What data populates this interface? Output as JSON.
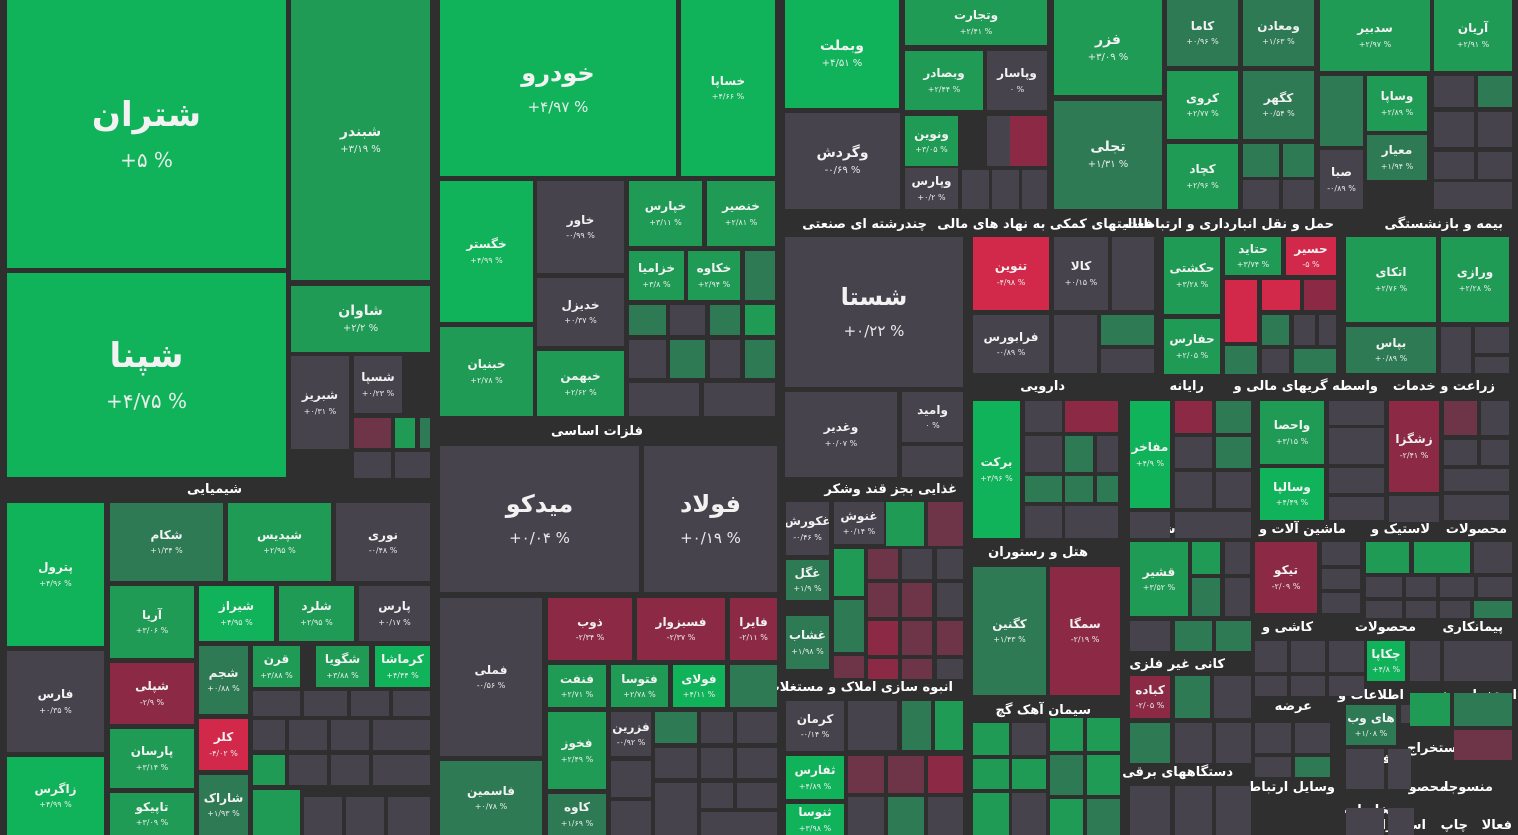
{
  "chart_data": {
    "type": "treemap",
    "title": "",
    "colors": {
      "up_bright": "#10b25a",
      "up": "#1f9b55",
      "up_dim": "#2d7a54",
      "flat": "#47434c",
      "down_dim": "#6e3447",
      "down": "#8c2a45",
      "down_bright": "#d2294a",
      "background": "#2f2f2f"
    },
    "sectors": [
      "شیمیایی",
      "فلزات اساسی",
      "چندرشته ای صنعتی",
      "فعالیتهای کمکی به نهاد های مالی",
      "حمل و نقل انبارداری و ارتباطات",
      "بیمه و بازنشستگی",
      "دارویی",
      "رایانه",
      "واسطه گریهای مالی و",
      "زراعت و خدمات",
      "غذایی بجز قند وشکر",
      "هتل و رستوران",
      "قند و شکر",
      "ماشین آلات و",
      "لاستیک و",
      "محصولات",
      "انبوه سازی املاک و مستغلات",
      "سیمان آهک گچ",
      "کانی غیر فلزی",
      "کاشی و",
      "محصولات",
      "پیمانکاری",
      "اطلاعات و",
      "خرده",
      "استخراج",
      "عرضه",
      "فنی و",
      "استخراج",
      "محصولا",
      "دستگاههای برقی",
      "وسایل ارتباطی",
      "مخابرات",
      "محصو",
      "منسوجا",
      "چاپ",
      "استخراج",
      "فعالا"
    ],
    "tickers": [
      {
        "name": "شتران",
        "change": "+۵ %"
      },
      {
        "name": "شپنا",
        "change": "+۴/۷۵ %"
      },
      {
        "name": "شبندر",
        "change": "+۳/۱۹ %"
      },
      {
        "name": "شاوان",
        "change": "+۲/۲ %"
      },
      {
        "name": "شبریز",
        "change": "+۰/۳۱ %"
      },
      {
        "name": "شسپا",
        "change": "+۰/۲۳ %"
      },
      {
        "name": "خودرو",
        "change": "+۴/۹۷ %"
      },
      {
        "name": "خساپا",
        "change": "+۴/۶۶ %"
      },
      {
        "name": "خگستر",
        "change": "+۴/۹۹ %"
      },
      {
        "name": "خبنیان",
        "change": "+۲/۷۸ %"
      },
      {
        "name": "خاور",
        "change": "-۰/۹۹ %"
      },
      {
        "name": "خدیزل",
        "change": "+۰/۳۷ %"
      },
      {
        "name": "خبهمن",
        "change": "+۲/۶۲ %"
      },
      {
        "name": "خپارس",
        "change": "+۳/۱۱ %"
      },
      {
        "name": "خنصیر",
        "change": "+۲/۸۱ %"
      },
      {
        "name": "خزامیا",
        "change": "+۳/۸ %"
      },
      {
        "name": "خکاوه",
        "change": "+۲/۹۴ %"
      },
      {
        "name": "وبملت",
        "change": "+۴/۵۱ %"
      },
      {
        "name": "وتجارت",
        "change": "+۲/۴۱ %"
      },
      {
        "name": "وبصادر",
        "change": "+۲/۴۴ %"
      },
      {
        "name": "وپاسار",
        "change": "۰ %"
      },
      {
        "name": "ونوین",
        "change": "+۳/۰۵ %"
      },
      {
        "name": "وپارس",
        "change": "+۰/۲ %"
      },
      {
        "name": "وگردش",
        "change": "-۰/۶۹ %"
      },
      {
        "name": "فزر",
        "change": "+۳/۰۹ %"
      },
      {
        "name": "تجلی",
        "change": "+۱/۳۱ %"
      },
      {
        "name": "کاما",
        "change": "+۰/۹۶ %"
      },
      {
        "name": "ومعادن",
        "change": "+۱/۶۳ %"
      },
      {
        "name": "کروی",
        "change": "+۲/۷۷ %"
      },
      {
        "name": "کگهر",
        "change": "+۰/۵۴ %"
      },
      {
        "name": "کچاد",
        "change": "+۲/۹۶ %"
      },
      {
        "name": "سدبیر",
        "change": "+۲/۹۷ %"
      },
      {
        "name": "آریان",
        "change": "+۲/۹۱ %"
      },
      {
        "name": "وساپا",
        "change": "+۲/۸۹ %"
      },
      {
        "name": "معیار",
        "change": "+۱/۹۴ %"
      },
      {
        "name": "صبا",
        "change": "-۰/۸۹ %"
      },
      {
        "name": "شستا",
        "change": "+۰/۲۲ %"
      },
      {
        "name": "وغدیر",
        "change": "+۰/۰۷ %"
      },
      {
        "name": "وامید",
        "change": "۰ %"
      },
      {
        "name": "تنوین",
        "change": "-۴/۹۸ %"
      },
      {
        "name": "کالا",
        "change": "+۰/۱۵ %"
      },
      {
        "name": "فرابورس",
        "change": "-۰/۸۹ %"
      },
      {
        "name": "حکشتی",
        "change": "+۳/۲۸ %"
      },
      {
        "name": "حتاید",
        "change": "+۳/۷۴ %"
      },
      {
        "name": "حسیر",
        "change": "-۵ %"
      },
      {
        "name": "حفارس",
        "change": "+۲/۰۵ %"
      },
      {
        "name": "اتکای",
        "change": "+۲/۷۶ %"
      },
      {
        "name": "ورازی",
        "change": "+۲/۲۸ %"
      },
      {
        "name": "بپاس",
        "change": "+۰/۸۹ %"
      },
      {
        "name": "برکت",
        "change": "+۳/۹۶ %"
      },
      {
        "name": "مفاخر",
        "change": "+۴/۹ %"
      },
      {
        "name": "واحصا",
        "change": "+۳/۱۵ %"
      },
      {
        "name": "وسالپا",
        "change": "+۴/۴۹ %"
      },
      {
        "name": "زشگزا",
        "change": "-۲/۴۱ %"
      },
      {
        "name": "قشیر",
        "change": "+۳/۵۲ %"
      },
      {
        "name": "تیکو",
        "change": "-۲/۰۹ %"
      },
      {
        "name": "میدکو",
        "change": "+۰/۰۴ %"
      },
      {
        "name": "فولاد",
        "change": "+۰/۱۹ %"
      },
      {
        "name": "فملی",
        "change": "-۰/۵۶ %"
      },
      {
        "name": "فاسمین",
        "change": "+۰/۷۸ %"
      },
      {
        "name": "ذوب",
        "change": "-۲/۳۴ %"
      },
      {
        "name": "فسبزوار",
        "change": "-۲/۳۷ %"
      },
      {
        "name": "فایرا",
        "change": "-۲/۱۱ %"
      },
      {
        "name": "فنفت",
        "change": "+۲/۷۱ %"
      },
      {
        "name": "فتوسا",
        "change": "+۲/۷۸ %"
      },
      {
        "name": "فولای",
        "change": "+۴/۱۱ %"
      },
      {
        "name": "فزرین",
        "change": "-۰/۹۲ %"
      },
      {
        "name": "فخوز",
        "change": "+۲/۴۹ %"
      },
      {
        "name": "کاوه",
        "change": "+۱/۶۹ %"
      },
      {
        "name": "پترول",
        "change": "+۴/۹۶ %"
      },
      {
        "name": "شکام",
        "change": "+۱/۳۴ %"
      },
      {
        "name": "شپدیس",
        "change": "+۲/۹۵ %"
      },
      {
        "name": "نوری",
        "change": "-۰/۴۸ %"
      },
      {
        "name": "آریا",
        "change": "+۳/۰۶ %"
      },
      {
        "name": "شیراز",
        "change": "+۴/۹۵ %"
      },
      {
        "name": "شلرد",
        "change": "+۲/۹۵ %"
      },
      {
        "name": "پارس",
        "change": "+۰/۱۷ %"
      },
      {
        "name": "فارس",
        "change": "+۰/۳۵ %"
      },
      {
        "name": "شپلی",
        "change": "-۲/۹ %"
      },
      {
        "name": "شجم",
        "change": "+۰/۸۸ %"
      },
      {
        "name": "قرن",
        "change": "+۳/۸۸ %"
      },
      {
        "name": "شگویا",
        "change": "+۳/۸۸ %"
      },
      {
        "name": "کرماشا",
        "change": "+۴/۴۴ %"
      },
      {
        "name": "پارسان",
        "change": "+۳/۱۴ %"
      },
      {
        "name": "کلر",
        "change": "-۴/۰۲ %"
      },
      {
        "name": "زاگرس",
        "change": "+۴/۹۹ %"
      },
      {
        "name": "تاپیکو",
        "change": "+۳/۰۹ %"
      },
      {
        "name": "شاراک",
        "change": "+۱/۹۳ %"
      },
      {
        "name": "غکورش",
        "change": "-۰/۴۶ %"
      },
      {
        "name": "غنوش",
        "change": "+۰/۱۴ %"
      },
      {
        "name": "غگل",
        "change": "+۱/۹ %"
      },
      {
        "name": "غشاب",
        "change": "+۱/۹۸ %"
      },
      {
        "name": "کرمان",
        "change": "-۰/۱۴ %"
      },
      {
        "name": "ثفارس",
        "change": "+۴/۸۹ %"
      },
      {
        "name": "ثنوسا",
        "change": "+۳/۹۸ %"
      },
      {
        "name": "کگنین",
        "change": "+۱/۴۳ %"
      },
      {
        "name": "سمگا",
        "change": "-۲/۱۹ %"
      },
      {
        "name": "کباده",
        "change": "-۲/۰۵ %"
      },
      {
        "name": "چکاپا",
        "change": "+۴/۸ %"
      },
      {
        "name": "های وب",
        "change": "+۱/۰۸ %"
      }
    ]
  }
}
